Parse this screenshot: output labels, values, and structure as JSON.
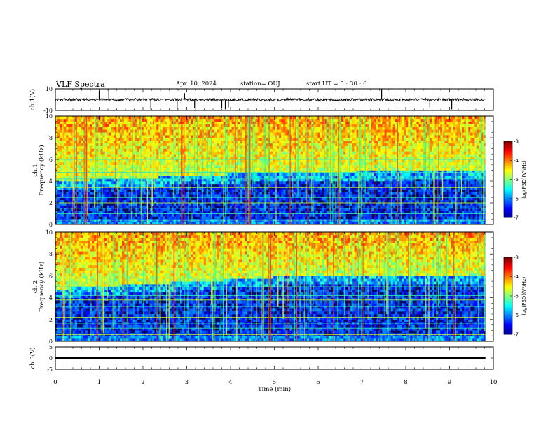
{
  "header": {
    "title": "VLF Spectra",
    "date": "Apr. 10, 2024",
    "station": "station= OUJ",
    "start": "start  UT  =   5  : 30 : 0"
  },
  "chart_data": [
    {
      "type": "line",
      "panel": "ch1-waveform",
      "ylabel": "ch.1(V)",
      "ylim": [
        -10,
        10
      ],
      "yticks": [
        "10",
        "-10"
      ],
      "xlim": [
        0,
        10
      ],
      "series": [
        {
          "values_description_free": true,
          "baseline": 0,
          "noise_amplitude": 1.2,
          "spikes": [
            [
              1.0,
              8
            ],
            [
              1.22,
              10
            ],
            [
              2.18,
              -9
            ],
            [
              2.78,
              -9
            ],
            [
              2.95,
              6
            ],
            [
              3.18,
              -8
            ],
            [
              3.8,
              -8
            ],
            [
              3.88,
              -9
            ],
            [
              3.95,
              -7
            ],
            [
              7.45,
              10
            ],
            [
              8.55,
              -7
            ],
            [
              9.05,
              -9
            ]
          ]
        }
      ]
    },
    {
      "type": "heatmap",
      "panel": "ch1-spectrogram",
      "ylabel": "ch.1\nFrequency (kHz)",
      "ylim": [
        0,
        10
      ],
      "yticks": [
        "0",
        "2",
        "4",
        "6",
        "8",
        "10"
      ],
      "xlim": [
        0,
        10
      ],
      "colorbar": {
        "label": "log(PSD)(V²/Hz)",
        "range": [
          -7,
          -3
        ],
        "ticks": [
          "-3",
          "-4",
          "-5",
          "-6",
          "-7"
        ]
      },
      "background_cutoff_khz": [
        [
          0,
          3.4
        ],
        [
          5,
          4.2
        ],
        [
          10,
          4.4
        ]
      ],
      "emission_band_khz": [
        3.5,
        10
      ],
      "constant_lines_khz": [
        0.4,
        1.0,
        1.5,
        2.0,
        2.5,
        3.0,
        3.4,
        4.2,
        4.8,
        5.4,
        6.0
      ]
    },
    {
      "type": "heatmap",
      "panel": "ch2-spectrogram",
      "ylabel": "ch.2\nFrequency (kHz)",
      "ylim": [
        0,
        10
      ],
      "yticks": [
        "0",
        "2",
        "4",
        "6",
        "8",
        "10"
      ],
      "xlim": [
        0,
        10
      ],
      "colorbar": {
        "label": "log(PSD)(V²/Hz)",
        "range": [
          -7,
          -3
        ],
        "ticks": [
          "-3",
          "-4",
          "-5",
          "-6",
          "-7"
        ]
      },
      "background_cutoff_khz": [
        [
          0,
          4.2
        ],
        [
          6,
          5.5
        ],
        [
          10,
          5.5
        ]
      ],
      "emission_band_khz": [
        4.0,
        10
      ],
      "constant_lines_khz": [
        0.6,
        1.2,
        1.6,
        2.2,
        2.8,
        3.2,
        3.8,
        4.2,
        5.0
      ]
    },
    {
      "type": "line",
      "panel": "ch3-waveform",
      "ylabel": "ch.3(V)",
      "ylim": [
        -5,
        5
      ],
      "yticks": [
        "5",
        "0",
        "-5"
      ],
      "xlim": [
        0,
        10
      ],
      "series": [
        {
          "values": [
            0,
            0
          ],
          "x": [
            0,
            9.82
          ]
        }
      ]
    }
  ],
  "xaxis": {
    "label": "Time (min)",
    "ticks": [
      "0",
      "1",
      "2",
      "3",
      "4",
      "5",
      "6",
      "7",
      "8",
      "9",
      "10"
    ],
    "data_end": 9.82
  }
}
